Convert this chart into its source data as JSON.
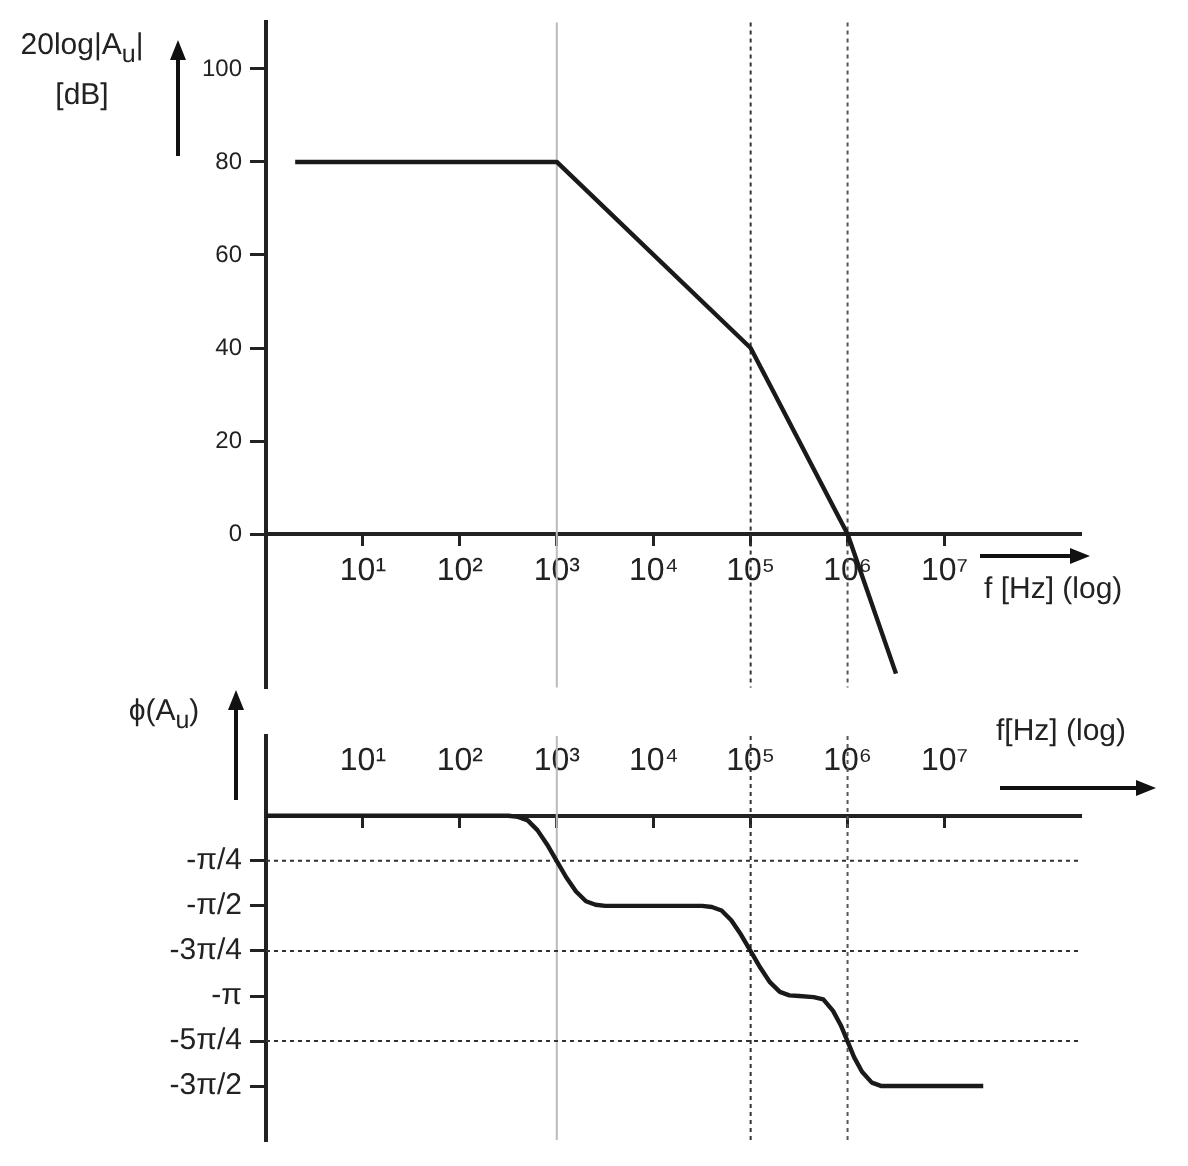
{
  "chart_data": [
    {
      "type": "line",
      "ylabel": "20log|A$_{u}$| [dB]",
      "xlabel": "f [Hz] (log)",
      "log": "x",
      "marker": "none",
      "x": [
        2,
        1000,
        100000,
        1000000,
        3160000
      ],
      "series": [
        {
          "color": "#1a1a1a",
          "values": [
            80,
            80,
            40,
            0,
            -30
          ]
        }
      ],
      "xlim": [
        1,
        250000000
      ],
      "ylim": [
        -33,
        110
      ],
      "xticks": [
        {
          "value": 10,
          "label": "10¹"
        },
        {
          "value": 100,
          "label": "10²"
        },
        {
          "value": 1000,
          "label": "10³"
        },
        {
          "value": 10000,
          "label": "10⁴"
        },
        {
          "value": 100000,
          "label": "10⁵"
        },
        {
          "value": 1000000,
          "label": "10⁶"
        },
        {
          "value": 10000000,
          "label": "10⁷"
        }
      ],
      "yticks": [
        0,
        20,
        40,
        60,
        80,
        100
      ],
      "ref_lines": [
        {
          "axis": "x",
          "value": 1000,
          "color": "#bbbbbb",
          "line_style": "solid"
        },
        {
          "axis": "x",
          "value": 100000,
          "color": "#333333",
          "line_style": "dotted"
        },
        {
          "axis": "x",
          "value": 1000000,
          "color": "#555555",
          "line_style": "dotted"
        }
      ]
    },
    {
      "type": "line",
      "ylabel": "ϕ(A$_{u}$)",
      "xlabel": "f[Hz] (log)",
      "log": "x",
      "marker": "none",
      "x": [
        1,
        316,
        398,
        501,
        631,
        794,
        1000,
        1260,
        1580,
        2000,
        2510,
        3160,
        31600,
        39800,
        50100,
        63100,
        79400,
        100000,
        126000,
        158000,
        200000,
        251000,
        316000,
        447000,
        562000,
        708000,
        851000,
        1000000,
        1170000,
        1410000,
        1780000,
        2240000,
        25100000
      ],
      "series": [
        {
          "color": "#1a1a1a",
          "values": [
            0,
            0,
            -0.02,
            -0.08,
            -0.25,
            -0.5,
            -0.79,
            -1.08,
            -1.32,
            -1.49,
            -1.55,
            -1.57,
            -1.57,
            -1.59,
            -1.65,
            -1.82,
            -2.07,
            -2.36,
            -2.65,
            -2.9,
            -3.07,
            -3.13,
            -3.14,
            -3.16,
            -3.2,
            -3.4,
            -3.65,
            -3.93,
            -4.21,
            -4.46,
            -4.65,
            -4.71,
            -4.71
          ]
        }
      ],
      "xlim": [
        1,
        250000000
      ],
      "ylim": [
        -5.65,
        1.39
      ],
      "xticks": [
        {
          "value": 10,
          "label": "10¹"
        },
        {
          "value": 100,
          "label": "10²"
        },
        {
          "value": 1000,
          "label": "10³"
        },
        {
          "value": 10000,
          "label": "10⁴"
        },
        {
          "value": 100000,
          "label": "10⁵"
        },
        {
          "value": 1000000,
          "label": "10⁶"
        },
        {
          "value": 10000000,
          "label": "10⁷"
        }
      ],
      "yticks": [
        {
          "value": -0.785,
          "label": "-π/4"
        },
        {
          "value": -1.571,
          "label": "-π/2"
        },
        {
          "value": -2.356,
          "label": "-3π/4"
        },
        {
          "value": -3.142,
          "label": "-π"
        },
        {
          "value": -3.927,
          "label": "-5π/4"
        },
        {
          "value": -4.712,
          "label": "-3π/2"
        }
      ],
      "ref_lines": [
        {
          "axis": "x",
          "value": 1000,
          "color": "#bbbbbb",
          "line_style": "solid"
        },
        {
          "axis": "x",
          "value": 100000,
          "color": "#333333",
          "line_style": "dotted"
        },
        {
          "axis": "x",
          "value": 1000000,
          "color": "#555555",
          "line_style": "dotted"
        },
        {
          "axis": "y",
          "value": -0.785,
          "color": "#333333",
          "line_style": "dotted"
        },
        {
          "axis": "y",
          "value": -2.356,
          "color": "#333333",
          "line_style": "dotted"
        },
        {
          "axis": "y",
          "value": -3.927,
          "color": "#333333",
          "line_style": "dotted"
        }
      ]
    }
  ]
}
